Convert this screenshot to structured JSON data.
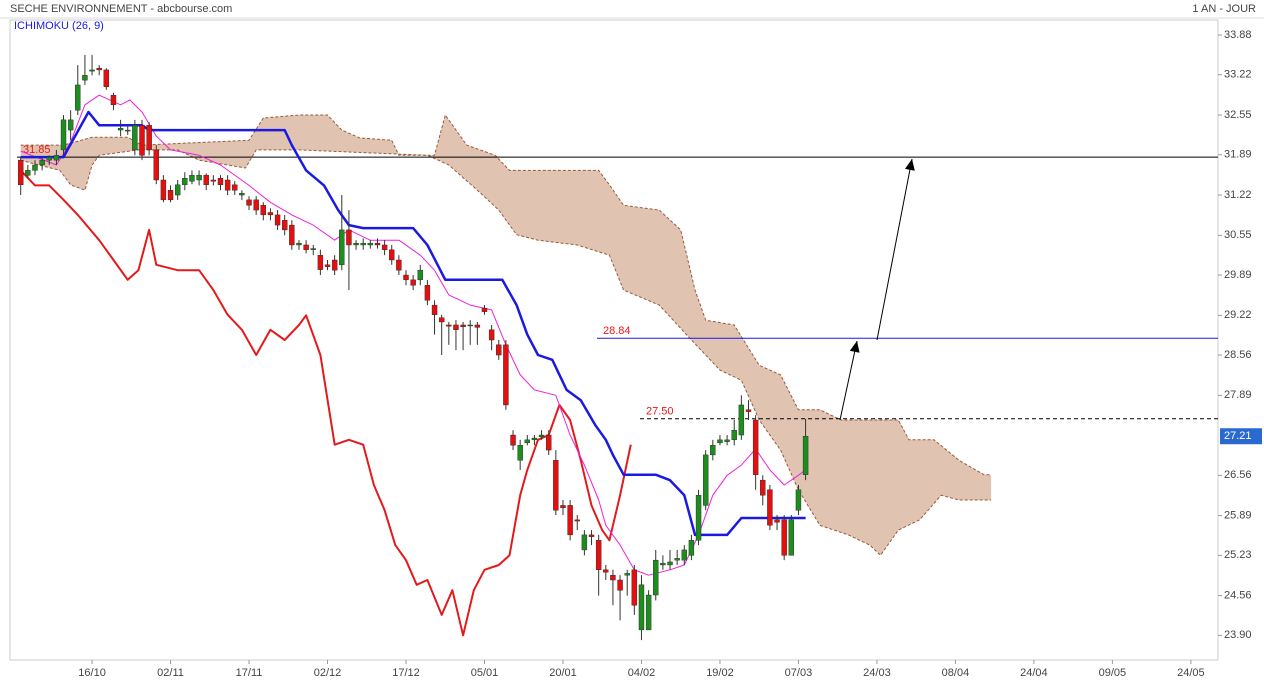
{
  "chart_data": {
    "type": "candlestick",
    "title": "SECHE ENVIRONNEMENT - abcbourse.com",
    "subtitle": "1 AN - JOUR",
    "indicator": "ICHIMOKU (26, 9)",
    "xlim": [
      -1.5,
      167.8
    ],
    "ylim": [
      23.49,
      34.13
    ],
    "xticks": [
      {
        "value": 10,
        "label": "16/10"
      },
      {
        "value": 21,
        "label": "02/11"
      },
      {
        "value": 32,
        "label": "17/11"
      },
      {
        "value": 43,
        "label": "02/12"
      },
      {
        "value": 54,
        "label": "17/12"
      },
      {
        "value": 65,
        "label": "05/01"
      },
      {
        "value": 76,
        "label": "20/01"
      },
      {
        "value": 87,
        "label": "04/02"
      },
      {
        "value": 98,
        "label": "19/02"
      },
      {
        "value": 109,
        "label": "07/03"
      },
      {
        "value": 120,
        "label": "24/03"
      },
      {
        "value": 131,
        "label": "08/04"
      },
      {
        "value": 142,
        "label": "24/04"
      },
      {
        "value": 153,
        "label": "09/05"
      },
      {
        "value": 164,
        "label": "24/05"
      }
    ],
    "yticks": [
      {
        "value": 23.9,
        "label": "23.90"
      },
      24.56,
      25.23,
      25.89,
      26.56,
      27.89,
      28.56,
      29.22,
      29.89,
      30.55,
      31.22,
      31.89,
      32.55,
      33.22,
      33.88
    ],
    "up_color": "#1e8c1e",
    "down_color": "#e31010",
    "x": [
      0,
      1,
      2,
      3,
      4,
      5,
      6,
      7,
      8,
      9,
      10,
      11,
      12,
      13,
      14,
      15,
      16,
      17,
      18,
      19,
      20,
      21,
      22,
      23,
      24,
      25,
      26,
      27,
      28,
      29,
      30,
      31,
      32,
      33,
      34,
      35,
      36,
      37,
      38,
      39,
      40,
      41,
      42,
      43,
      44,
      45,
      46,
      47,
      48,
      49,
      50,
      51,
      52,
      53,
      54,
      55,
      56,
      57,
      58,
      59,
      60,
      61,
      62,
      63,
      64,
      65,
      66,
      67,
      68,
      69,
      70,
      71,
      72,
      73,
      74,
      75,
      76,
      77,
      78,
      79,
      80,
      81,
      82,
      83,
      84,
      85,
      86,
      87,
      88,
      89,
      90,
      91,
      92,
      93,
      94,
      95,
      96,
      97,
      98,
      99,
      100,
      101,
      102,
      103,
      104,
      105,
      106,
      107,
      108,
      109,
      110
    ],
    "open": [
      31.8,
      31.55,
      31.63,
      31.72,
      31.8,
      31.8,
      31.97,
      32.3,
      32.63,
      33.13,
      33.28,
      33.33,
      33.3,
      32.88,
      32.3,
      32.3,
      31.97,
      32.38,
      32.38,
      31.97,
      31.47,
      31.3,
      31.22,
      31.39,
      31.45,
      31.47,
      31.55,
      31.47,
      31.5,
      31.47,
      31.39,
      31.22,
      31.14,
      31.14,
      31.05,
      30.93,
      30.89,
      30.8,
      30.72,
      30.39,
      30.39,
      30.31,
      30.22,
      30.06,
      30.14,
      30.06,
      30.64,
      30.39,
      30.39,
      30.39,
      30.42,
      30.39,
      30.31,
      30.14,
      29.89,
      29.81,
      29.81,
      29.72,
      29.39,
      29.18,
      29.06,
      29.06,
      29.06,
      29.06,
      29.06,
      29.34,
      28.98,
      28.73,
      28.73,
      27.23,
      26.81,
      27.1,
      27.15,
      27.2,
      27.23,
      26.81,
      26.06,
      26.06,
      25.82,
      25.32,
      25.57,
      25.48,
      24.99,
      24.9,
      24.82,
      24.9,
      24.99,
      23.99,
      23.99,
      24.57,
      25.07,
      25.07,
      25.15,
      25.15,
      25.23,
      25.48,
      26.06,
      26.9,
      27.1,
      27.12,
      27.15,
      27.23,
      27.65,
      27.48,
      26.48,
      26.32,
      25.82,
      25.82,
      25.23,
      25.98,
      26.57
    ],
    "high": [
      31.85,
      31.72,
      31.8,
      31.85,
      31.88,
      31.97,
      32.55,
      32.63,
      33.38,
      33.55,
      33.55,
      33.38,
      33.33,
      32.92,
      32.47,
      32.38,
      32.47,
      32.47,
      32.43,
      32.05,
      31.55,
      31.38,
      31.47,
      31.6,
      31.63,
      31.63,
      31.58,
      31.55,
      31.55,
      31.55,
      31.45,
      31.3,
      31.2,
      31.2,
      31.1,
      31.0,
      30.97,
      30.89,
      30.8,
      30.47,
      30.47,
      30.39,
      30.31,
      30.14,
      30.22,
      31.22,
      30.97,
      30.47,
      30.5,
      30.47,
      30.5,
      30.47,
      30.39,
      30.22,
      29.97,
      29.89,
      30.06,
      29.81,
      29.47,
      29.23,
      29.11,
      29.14,
      29.11,
      29.14,
      29.11,
      29.39,
      29.06,
      28.81,
      28.81,
      27.31,
      27.15,
      27.23,
      27.23,
      27.31,
      27.31,
      26.98,
      26.15,
      26.15,
      25.9,
      25.65,
      25.65,
      25.57,
      25.07,
      24.99,
      24.9,
      24.99,
      25.07,
      24.9,
      24.65,
      25.32,
      25.23,
      25.32,
      25.32,
      25.4,
      25.57,
      26.32,
      26.98,
      27.15,
      27.23,
      27.23,
      27.48,
      27.89,
      27.81,
      27.56,
      26.56,
      26.4,
      25.9,
      25.9,
      25.9,
      26.4,
      27.5
    ],
    "low": [
      31.22,
      31.5,
      31.55,
      31.63,
      31.72,
      31.72,
      31.88,
      32.13,
      32.55,
      33.05,
      33.21,
      33.21,
      32.97,
      32.63,
      32.2,
      32.22,
      31.88,
      31.8,
      31.88,
      31.4,
      31.1,
      31.1,
      31.14,
      31.3,
      31.4,
      31.38,
      31.3,
      31.38,
      31.3,
      31.22,
      31.22,
      31.14,
      30.97,
      30.89,
      30.8,
      30.8,
      30.64,
      30.55,
      30.31,
      30.31,
      30.25,
      30.22,
      29.89,
      29.97,
      29.89,
      29.97,
      29.64,
      30.31,
      30.31,
      30.33,
      30.33,
      30.22,
      30.06,
      29.89,
      29.72,
      29.64,
      29.72,
      29.39,
      28.9,
      28.56,
      28.73,
      28.64,
      28.64,
      28.73,
      28.73,
      29.23,
      28.64,
      28.48,
      27.65,
      26.98,
      26.65,
      27.06,
      27.06,
      27.15,
      26.9,
      25.9,
      25.9,
      25.48,
      25.65,
      25.23,
      25.4,
      24.56,
      24.82,
      24.4,
      24.15,
      24.56,
      24.24,
      23.82,
      23.99,
      24.48,
      24.99,
      24.99,
      25.07,
      25.07,
      25.15,
      25.4,
      25.98,
      26.81,
      27.06,
      27.06,
      27.06,
      27.15,
      27.48,
      26.32,
      26.06,
      25.65,
      25.65,
      25.15,
      25.23,
      25.9,
      26.48
    ],
    "close": [
      31.39,
      31.63,
      31.72,
      31.8,
      31.85,
      31.88,
      32.47,
      32.47,
      33.05,
      33.21,
      33.3,
      33.3,
      33.02,
      32.72,
      32.33,
      32.3,
      32.38,
      31.88,
      31.97,
      31.47,
      31.14,
      31.14,
      31.39,
      31.5,
      31.55,
      31.55,
      31.39,
      31.45,
      31.39,
      31.3,
      31.3,
      31.25,
      31.05,
      30.97,
      30.89,
      30.89,
      30.72,
      30.64,
      30.39,
      30.42,
      30.31,
      30.33,
      29.98,
      30.03,
      29.97,
      30.64,
      30.39,
      30.42,
      30.42,
      30.42,
      30.39,
      30.31,
      30.14,
      29.97,
      29.81,
      29.72,
      29.97,
      29.47,
      29.23,
      29.11,
      29.04,
      28.98,
      29.03,
      29.06,
      29.02,
      29.28,
      28.81,
      28.56,
      27.73,
      27.06,
      27.06,
      27.15,
      27.18,
      27.23,
      26.98,
      25.98,
      26.02,
      25.57,
      25.8,
      25.57,
      25.54,
      24.99,
      24.95,
      24.82,
      24.65,
      24.93,
      24.4,
      24.74,
      24.57,
      25.15,
      25.1,
      25.12,
      25.18,
      25.32,
      25.48,
      26.23,
      26.9,
      27.06,
      27.15,
      27.15,
      27.31,
      27.73,
      27.62,
      26.57,
      26.23,
      25.73,
      25.78,
      25.23,
      25.82,
      26.32,
      27.21
    ],
    "cloud": {
      "fill": "#dcb8a4",
      "edge_color": "#9a5a3a",
      "span_a": {
        "x": [
          0,
          6,
          10,
          15,
          17,
          32,
          34,
          39,
          43,
          45,
          47.5,
          52,
          53,
          58,
          59.5,
          61,
          62.5,
          66.5,
          68.5,
          81,
          82.5,
          84.5,
          89.5,
          92.5,
          94.5,
          96,
          100,
          103.5,
          106.5,
          109,
          112,
          115,
          123,
          124.5,
          128,
          131.5,
          135,
          136
        ],
        "values": [
          32.05,
          32.05,
          32.18,
          32.18,
          32.05,
          32.13,
          32.5,
          32.55,
          32.55,
          32.3,
          32.17,
          32.13,
          31.88,
          31.88,
          32.55,
          32.3,
          32.05,
          31.88,
          31.63,
          31.63,
          31.39,
          31.05,
          30.97,
          30.64,
          29.64,
          29.14,
          29.06,
          28.39,
          28.23,
          27.65,
          27.65,
          27.48,
          27.48,
          27.15,
          27.15,
          26.81,
          26.57,
          26.57
        ]
      },
      "span_b": {
        "x": [
          0,
          5.5,
          7,
          9,
          10,
          11,
          16.5,
          22,
          25,
          31.5,
          33,
          39,
          57,
          60,
          64,
          67,
          69.5,
          72.5,
          78,
          82.5,
          84.5,
          89.5,
          94,
          98,
          101,
          103.5,
          106.5,
          109,
          112,
          116,
          119,
          120.5,
          123,
          126,
          129,
          131.5,
          135,
          136
        ],
        "values": [
          31.8,
          31.63,
          31.39,
          31.3,
          31.72,
          31.88,
          31.97,
          31.97,
          31.8,
          31.67,
          31.97,
          31.97,
          31.88,
          31.72,
          31.3,
          30.97,
          30.56,
          30.47,
          30.39,
          30.22,
          29.64,
          29.39,
          28.81,
          28.31,
          28.14,
          27.48,
          26.98,
          26.32,
          25.73,
          25.57,
          25.4,
          25.23,
          25.65,
          25.82,
          26.23,
          26.15,
          26.15,
          26.15
        ]
      }
    },
    "lines": [
      {
        "color": "#e31a1c",
        "width": 2,
        "x": [
          0,
          2,
          4,
          6,
          8,
          11,
          13,
          15,
          16.5,
          18,
          19,
          22,
          25,
          27,
          29,
          31,
          33,
          35,
          37,
          39,
          40,
          42,
          44,
          46,
          48,
          49.5,
          51,
          52.5,
          54,
          55.5,
          57,
          59,
          60.5,
          62,
          63.5,
          65,
          67,
          68.5,
          70,
          71,
          72.5,
          74,
          75.5,
          77,
          78.5,
          80,
          81.5,
          82.5,
          84,
          85.5
        ],
        "values": [
          31.63,
          31.38,
          31.38,
          31.14,
          30.89,
          30.47,
          30.14,
          29.81,
          29.97,
          30.64,
          30.06,
          29.97,
          29.97,
          29.64,
          29.23,
          28.98,
          28.56,
          28.98,
          28.81,
          29.06,
          29.22,
          28.56,
          27.07,
          27.15,
          27.07,
          26.4,
          25.98,
          25.4,
          25.15,
          24.74,
          24.82,
          24.24,
          24.65,
          23.9,
          24.65,
          24.99,
          25.07,
          25.23,
          26.23,
          26.65,
          27.15,
          27.23,
          27.73,
          27.48,
          26.81,
          26.06,
          25.65,
          25.48,
          26.23,
          27.07
        ]
      },
      {
        "color": "#ee22dd",
        "width": 1,
        "x": [
          0,
          5,
          7,
          9,
          11,
          14,
          15.3,
          17,
          19,
          21,
          25,
          28,
          32,
          35,
          38,
          41,
          44,
          46,
          49,
          53,
          56,
          58,
          60,
          63,
          66,
          68,
          70,
          72,
          75,
          77,
          79,
          81,
          82,
          84,
          86,
          88,
          91,
          93,
          95,
          97,
          99,
          101,
          103,
          105,
          107,
          109,
          110
        ],
        "values": [
          31.95,
          31.72,
          32.1,
          32.72,
          32.88,
          32.72,
          32.8,
          32.6,
          32.2,
          31.97,
          31.88,
          31.72,
          31.38,
          31.1,
          30.89,
          30.72,
          30.47,
          30.64,
          30.47,
          30.47,
          30.22,
          29.97,
          29.56,
          29.39,
          29.31,
          28.73,
          28.23,
          27.98,
          27.89,
          27.23,
          26.73,
          26.15,
          25.73,
          25.4,
          24.99,
          24.9,
          24.99,
          25.07,
          25.57,
          26.23,
          26.56,
          26.73,
          27.0,
          26.65,
          26.4,
          26.56,
          26.65
        ]
      },
      {
        "color": "#1a1ae0",
        "width": 2.5,
        "x": [
          0,
          6,
          9.5,
          11,
          17,
          18,
          37,
          38,
          40,
          42.5,
          44.5,
          46,
          48,
          55,
          57,
          59.5,
          67.5,
          69.5,
          71,
          72.5,
          74.5,
          76.5,
          78.5,
          80.5,
          82,
          83,
          84.5,
          89,
          91,
          93,
          94.5,
          99,
          101,
          110
        ],
        "values": [
          31.85,
          31.85,
          32.6,
          32.38,
          32.38,
          32.3,
          32.3,
          32.05,
          31.63,
          31.38,
          30.97,
          30.72,
          30.67,
          30.67,
          30.39,
          29.81,
          29.81,
          29.39,
          28.9,
          28.56,
          28.48,
          27.98,
          27.81,
          27.4,
          27.15,
          26.9,
          26.57,
          26.57,
          26.48,
          26.23,
          25.57,
          25.57,
          25.85,
          25.85
        ]
      }
    ],
    "levels": [
      {
        "value": 31.85,
        "color": "#000000",
        "dashed": false,
        "label_color": "#e31a1c"
      },
      {
        "value": 28.84,
        "color": "#1a1ae0",
        "dashed": false,
        "label_color": "#e31a1c"
      },
      {
        "value": 27.5,
        "label": "27.50",
        "color": "#000000",
        "dashed": true,
        "label_color": "#e31a1c"
      }
    ],
    "last_price": 27.21,
    "last_price_color": "#2a6ad0"
  }
}
